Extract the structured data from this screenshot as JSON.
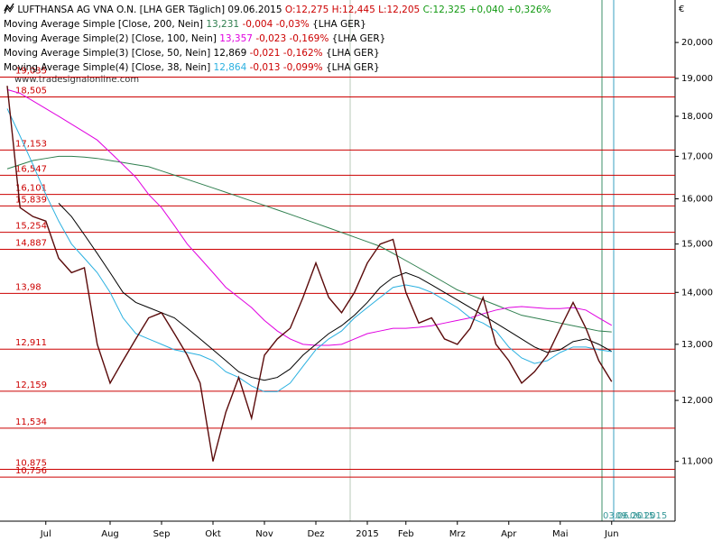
{
  "chart_data": {
    "type": "line",
    "header": {
      "name": "LUFTHANSA AG VNA O.N. [LHA GER  Täglich] 09.06.2015",
      "ohl": "O:12,275 H:12,445 L:12,205",
      "close": "C:12,325 +0,040 +0,326%"
    },
    "unit": "€",
    "watermark": "www.tradesignalonline.com",
    "x_markers": [
      "03.06.2015",
      "09.06.2015"
    ],
    "log_scale": true,
    "ylim": [
      10100,
      21250
    ],
    "yticks": [
      {
        "value": 11000,
        "label": "11,000"
      },
      {
        "value": 12000,
        "label": "12,000"
      },
      {
        "value": 13000,
        "label": "13,000"
      },
      {
        "value": 14000,
        "label": "14,000"
      },
      {
        "value": 15000,
        "label": "15,000"
      },
      {
        "value": 16000,
        "label": "16,000"
      },
      {
        "value": 17000,
        "label": "17,000"
      },
      {
        "value": 18000,
        "label": "18,000"
      },
      {
        "value": 19000,
        "label": "19,000"
      },
      {
        "value": 20000,
        "label": "20,000"
      }
    ],
    "levels": [
      {
        "value": 19035,
        "label": "19,035"
      },
      {
        "value": 18505,
        "label": "18,505"
      },
      {
        "value": 17153,
        "label": "17,153"
      },
      {
        "value": 16547,
        "label": "16,547"
      },
      {
        "value": 16101,
        "label": "16,101"
      },
      {
        "value": 15839,
        "label": "15,839"
      },
      {
        "value": 15254,
        "label": "15,254"
      },
      {
        "value": 14887,
        "label": "14,887"
      },
      {
        "value": 13980,
        "label": "13,98"
      },
      {
        "value": 12911,
        "label": "12,911"
      },
      {
        "value": 12159,
        "label": "12,159"
      },
      {
        "value": 11534,
        "label": "11,534"
      },
      {
        "value": 10875,
        "label": "10,875"
      },
      {
        "value": 10756,
        "label": "10,756"
      }
    ],
    "level_color": "#cc0000",
    "categories": [
      null,
      null,
      null,
      "Jul",
      null,
      null,
      null,
      null,
      "Aug",
      null,
      null,
      null,
      "Sep",
      null,
      null,
      null,
      "Okt",
      null,
      null,
      null,
      "Nov",
      null,
      null,
      null,
      "Dez",
      null,
      null,
      null,
      "2015",
      null,
      null,
      "Feb",
      null,
      null,
      null,
      "Mrz",
      null,
      null,
      null,
      "Apr",
      null,
      null,
      null,
      "Mai",
      null,
      null,
      null,
      "Jun"
    ],
    "color": "#5a0a0a",
    "values": [
      18800,
      15800,
      15600,
      15500,
      14700,
      14400,
      14500,
      13000,
      12300,
      12700,
      13100,
      13500,
      13600,
      13200,
      12800,
      12300,
      11000,
      11800,
      12400,
      11700,
      12800,
      13100,
      13300,
      13900,
      14600,
      13900,
      13600,
      14000,
      14600,
      15000,
      15100,
      14000,
      13400,
      13500,
      13100,
      13000,
      13300,
      13900,
      13000,
      12700,
      12300,
      12500,
      12800,
      13300,
      13800,
      13300,
      12700,
      12325
    ],
    "series": [
      {
        "name": "Moving Average Simple [Close, 200, Nein]",
        "last": "13,231",
        "change": "-0,004 -0,03%",
        "symbol": "{LHA GER}",
        "color": "#2f7f4f",
        "values": [
          16700,
          16800,
          16900,
          16950,
          17000,
          17000,
          16980,
          16950,
          16900,
          16850,
          16800,
          16750,
          16650,
          16550,
          16450,
          16350,
          16250,
          16150,
          16050,
          15950,
          15850,
          15750,
          15650,
          15550,
          15450,
          15350,
          15250,
          15150,
          15050,
          14950,
          14800,
          14650,
          14500,
          14350,
          14200,
          14050,
          13950,
          13850,
          13750,
          13650,
          13550,
          13500,
          13450,
          13400,
          13350,
          13300,
          13250,
          13231
        ]
      },
      {
        "name": "Moving Average Simple(2) [Close, 100, Nein]",
        "last": "13,357",
        "change": "-0,023 -0,169%",
        "symbol": "{LHA GER}",
        "color": "#e000e0",
        "values": [
          18700,
          18600,
          18400,
          18200,
          18000,
          17800,
          17600,
          17400,
          17100,
          16800,
          16500,
          16100,
          15800,
          15400,
          15000,
          14700,
          14400,
          14100,
          13900,
          13700,
          13450,
          13250,
          13100,
          13000,
          12980,
          12980,
          13000,
          13100,
          13200,
          13250,
          13300,
          13300,
          13320,
          13350,
          13400,
          13450,
          13500,
          13580,
          13650,
          13700,
          13720,
          13700,
          13680,
          13680,
          13700,
          13650,
          13500,
          13357
        ]
      },
      {
        "name": "Moving Average Simple(3) [Close, 50, Nein]",
        "last": "12,869",
        "change": "-0,021 -0,162%",
        "symbol": "{LHA GER}",
        "color": "#000000",
        "values": [
          null,
          null,
          null,
          null,
          15900,
          15600,
          15200,
          14800,
          14400,
          14000,
          13800,
          13700,
          13600,
          13500,
          13300,
          13100,
          12900,
          12700,
          12500,
          12400,
          12350,
          12400,
          12550,
          12800,
          13000,
          13200,
          13350,
          13550,
          13800,
          14100,
          14300,
          14400,
          14300,
          14150,
          14000,
          13850,
          13700,
          13550,
          13400,
          13250,
          13100,
          12950,
          12850,
          12900,
          13050,
          13100,
          13000,
          12869
        ]
      },
      {
        "name": "Moving Average Simple(4) [Close, 38, Nein]",
        "last": "12,864",
        "change": "-0,013 -0,099%",
        "symbol": "{LHA GER}",
        "color": "#2ab0e0",
        "values": [
          18200,
          17500,
          16800,
          16100,
          15500,
          15000,
          14700,
          14400,
          14000,
          13500,
          13200,
          13100,
          13000,
          12900,
          12850,
          12800,
          12700,
          12500,
          12400,
          12250,
          12150,
          12150,
          12300,
          12600,
          12900,
          13100,
          13250,
          13500,
          13700,
          13900,
          14100,
          14150,
          14100,
          14000,
          13850,
          13700,
          13500,
          13400,
          13250,
          12950,
          12750,
          12650,
          12700,
          12850,
          12950,
          12950,
          12900,
          12864
        ]
      }
    ]
  }
}
